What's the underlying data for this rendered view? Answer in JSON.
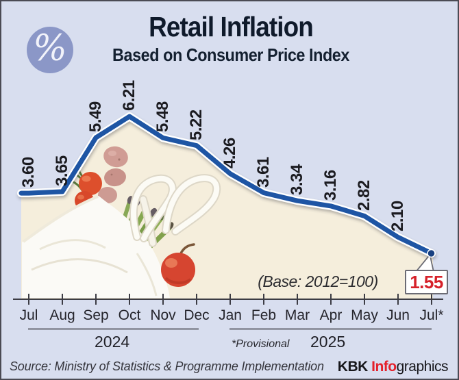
{
  "header": {
    "title": "Retail Inflation",
    "subtitle": "Based on Consumer Price Index",
    "percent_glyph": "%"
  },
  "chart_data": {
    "type": "line",
    "x": [
      "Jul",
      "Aug",
      "Sep",
      "Oct",
      "Nov",
      "Dec",
      "Jan",
      "Feb",
      "Mar",
      "Apr",
      "May",
      "Jun",
      "Jul*"
    ],
    "values": [
      3.6,
      3.65,
      5.49,
      6.21,
      5.48,
      5.22,
      4.26,
      3.61,
      3.34,
      3.16,
      2.82,
      2.1,
      1.55
    ],
    "value_labels": [
      "3.60",
      "3.65",
      "5.49",
      "6.21",
      "5.48",
      "5.22",
      "4.26",
      "3.61",
      "3.34",
      "3.16",
      "2.82",
      "2.10"
    ],
    "highlight": {
      "label": "1.55",
      "color": "#d6212a"
    },
    "year_groups": [
      {
        "label": "2024",
        "from": 0,
        "to": 5
      },
      {
        "label": "2025",
        "from": 6,
        "to": 12
      }
    ],
    "base_note": "(Base: 2012=100)",
    "provisional_note": "*Provisional",
    "ylabel": "",
    "xlabel": "",
    "ylim": [
      0,
      7
    ],
    "grid": false,
    "line_color": "#1e55a4",
    "line_casing_color": "#ffffff",
    "area_color": "#f5eedc",
    "axis_color": "#3c3c44"
  },
  "footer": {
    "source": "Source: Ministry of Statistics & Programme Implementation",
    "credit_kbk": "KBK ",
    "credit_info": "Info",
    "credit_graphics": "graphics"
  },
  "colors": {
    "background": "#d8deef",
    "border": "#4b4b54",
    "title": "#0f1a2b",
    "icon_circle": "#8b97c7",
    "accent_red": "#d6212a"
  }
}
